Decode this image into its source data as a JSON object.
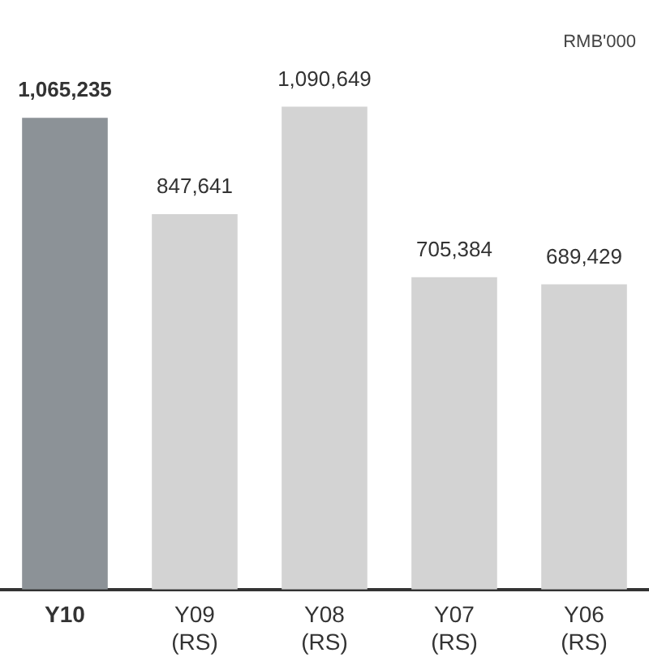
{
  "chart_data": {
    "type": "bar",
    "categories": [
      "Y10",
      "Y09\n(RS)",
      "Y08\n(RS)",
      "Y07\n(RS)",
      "Y06\n(RS)"
    ],
    "values": [
      1065235,
      847641,
      1090649,
      705384,
      689429
    ],
    "colors": [
      "#8c9297",
      "#d3d3d3",
      "#d3d3d3",
      "#d3d3d3",
      "#d3d3d3"
    ],
    "value_labels": [
      "1,065,235",
      "847,641",
      "1,090,649",
      "705,384",
      "689,429"
    ],
    "annotations": [
      "RMB'000"
    ],
    "legend": false,
    "grid": false
  }
}
